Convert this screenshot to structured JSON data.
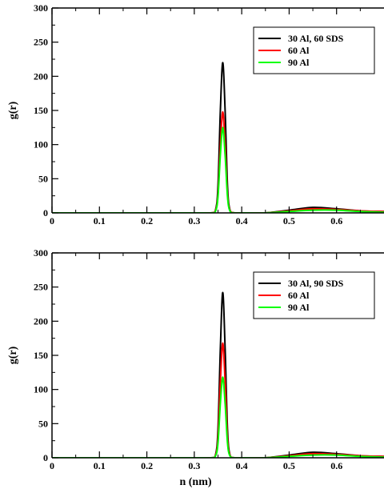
{
  "chart_data": [
    {
      "type": "line",
      "title": "",
      "xlabel": "",
      "ylabel": "g(r)",
      "xlim": [
        0,
        0.7
      ],
      "ylim": [
        0,
        300
      ],
      "xticks": [
        "0",
        "0.1",
        "0.2",
        "0.3",
        "0.4",
        "0.5",
        "0.6"
      ],
      "yticks": [
        "0",
        "50",
        "100",
        "150",
        "200",
        "250",
        "300"
      ],
      "grid": false,
      "legend_position": "top-right",
      "series": [
        {
          "name": "30 Al, 60 SDS",
          "color": "#000000",
          "x": [
            0,
            0.3,
            0.335,
            0.345,
            0.35,
            0.355,
            0.36,
            0.365,
            0.37,
            0.375,
            0.385,
            0.4,
            0.45,
            0.5,
            0.55,
            0.6,
            0.65,
            0.7
          ],
          "y": [
            0,
            0,
            0,
            5,
            40,
            150,
            220,
            150,
            40,
            5,
            0,
            0,
            0,
            4,
            8,
            6,
            3,
            2
          ]
        },
        {
          "name": "60 Al",
          "color": "#ff0000",
          "x": [
            0,
            0.3,
            0.335,
            0.345,
            0.35,
            0.355,
            0.36,
            0.365,
            0.37,
            0.375,
            0.385,
            0.4,
            0.45,
            0.5,
            0.55,
            0.6,
            0.65,
            0.7
          ],
          "y": [
            0,
            0,
            0,
            4,
            28,
            100,
            148,
            100,
            28,
            4,
            0,
            0,
            0,
            3,
            6,
            5,
            3,
            2
          ]
        },
        {
          "name": "90 Al",
          "color": "#00ff00",
          "x": [
            0,
            0.3,
            0.335,
            0.345,
            0.35,
            0.355,
            0.36,
            0.365,
            0.37,
            0.375,
            0.385,
            0.4,
            0.45,
            0.5,
            0.55,
            0.6,
            0.65,
            0.7
          ],
          "y": [
            0,
            0,
            0,
            3,
            24,
            85,
            125,
            85,
            24,
            3,
            0,
            0,
            0,
            2,
            4,
            4,
            2,
            1
          ]
        }
      ]
    },
    {
      "type": "line",
      "title": "",
      "xlabel": "n (nm)",
      "ylabel": "g(r)",
      "xlim": [
        0,
        0.7
      ],
      "ylim": [
        0,
        300
      ],
      "xticks": [
        "0",
        "0.1",
        "0.2",
        "0.3",
        "0.4",
        "0.5",
        "0.6"
      ],
      "yticks": [
        "0",
        "50",
        "100",
        "150",
        "200",
        "250",
        "300"
      ],
      "grid": false,
      "legend_position": "top-right",
      "series": [
        {
          "name": "30 Al, 90 SDS",
          "color": "#000000",
          "x": [
            0,
            0.3,
            0.335,
            0.345,
            0.35,
            0.355,
            0.36,
            0.365,
            0.37,
            0.375,
            0.385,
            0.4,
            0.45,
            0.5,
            0.55,
            0.6,
            0.65,
            0.7
          ],
          "y": [
            0,
            0,
            0,
            5,
            42,
            160,
            242,
            160,
            42,
            5,
            0,
            0,
            0,
            4,
            8,
            6,
            3,
            2
          ]
        },
        {
          "name": "60 Al",
          "color": "#ff0000",
          "x": [
            0,
            0.3,
            0.335,
            0.345,
            0.35,
            0.355,
            0.36,
            0.365,
            0.37,
            0.375,
            0.385,
            0.4,
            0.45,
            0.5,
            0.55,
            0.6,
            0.65,
            0.7
          ],
          "y": [
            0,
            0,
            0,
            4,
            30,
            112,
            168,
            112,
            30,
            4,
            0,
            0,
            0,
            3,
            6,
            5,
            3,
            2
          ]
        },
        {
          "name": "90 Al",
          "color": "#00ff00",
          "x": [
            0,
            0.3,
            0.335,
            0.345,
            0.35,
            0.355,
            0.36,
            0.365,
            0.37,
            0.375,
            0.385,
            0.4,
            0.45,
            0.5,
            0.55,
            0.6,
            0.65,
            0.7
          ],
          "y": [
            0,
            0,
            0,
            3,
            22,
            80,
            118,
            80,
            22,
            3,
            0,
            0,
            0,
            2,
            4,
            4,
            2,
            1
          ]
        }
      ]
    }
  ]
}
